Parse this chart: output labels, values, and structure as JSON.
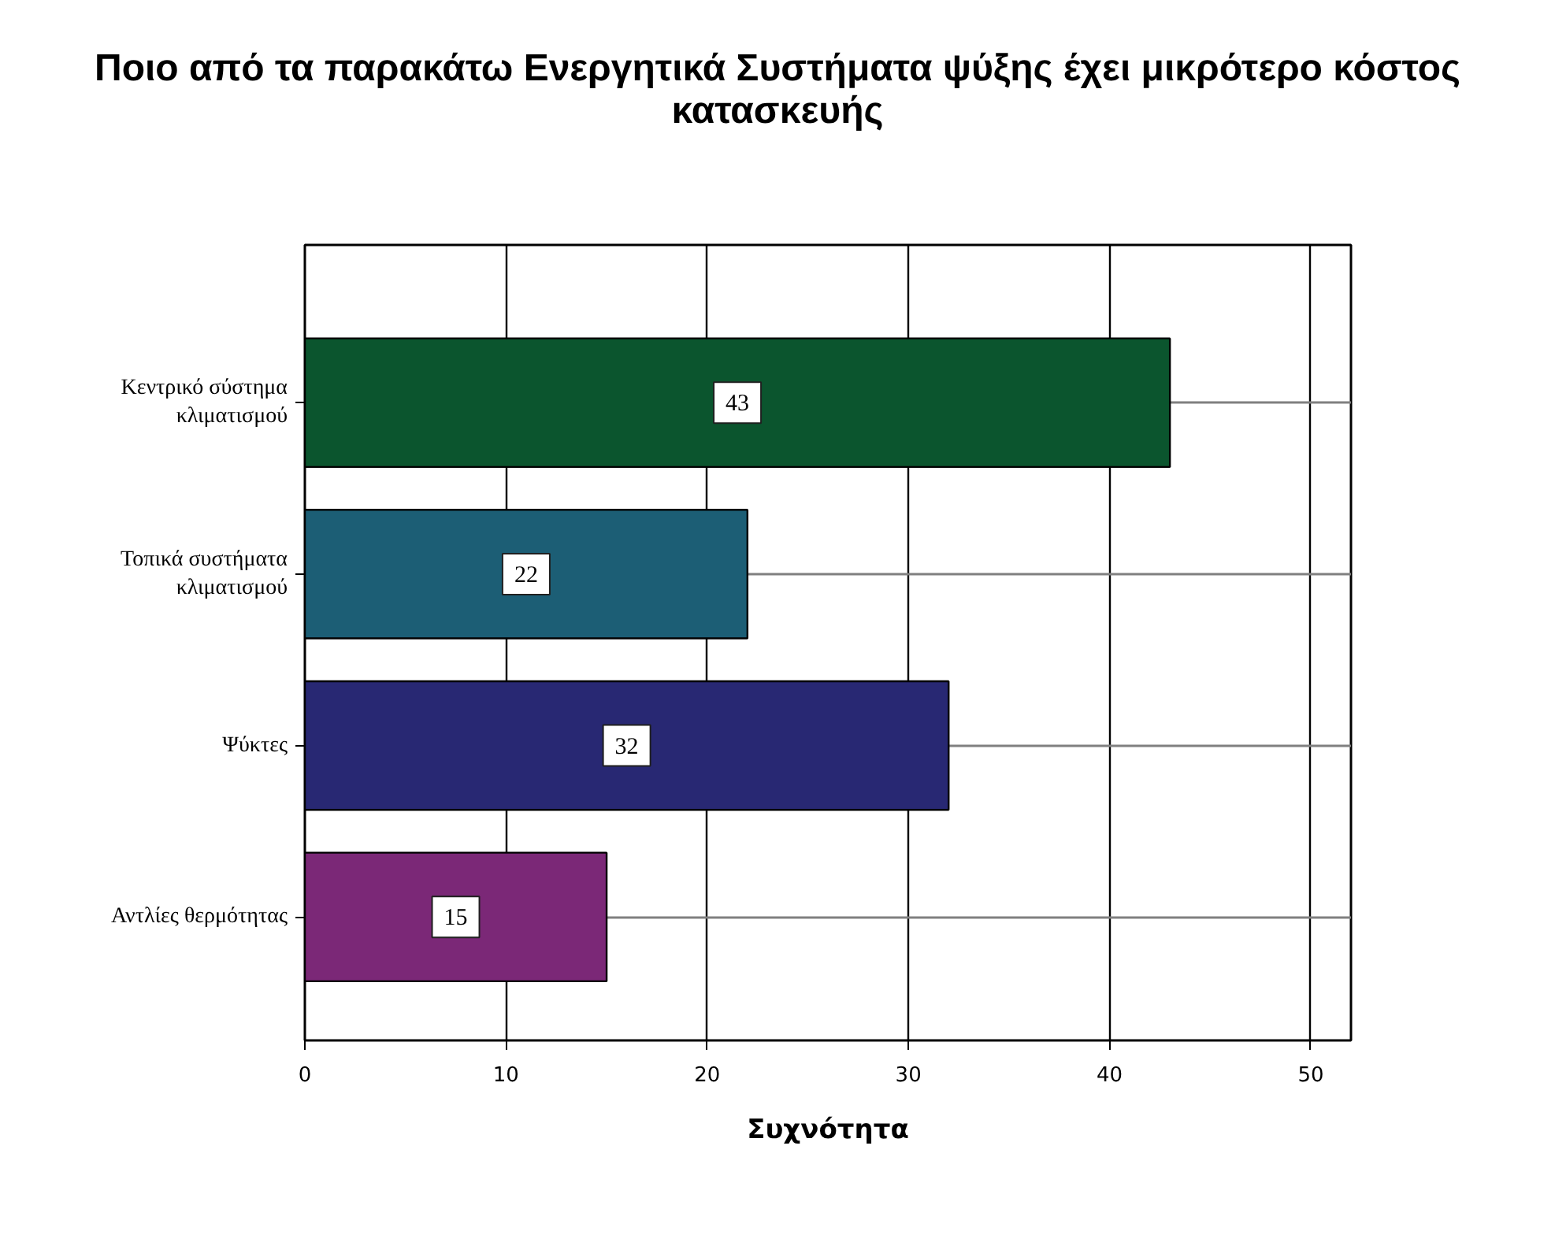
{
  "chart_data": {
    "type": "bar",
    "orientation": "horizontal",
    "title": "Ποιο από τα παρακάτω  Ενεργητικά Συστήματα ψύξης έχει μικρότερο κόστος κατασκευής",
    "xlabel": "Συχνότητα",
    "categories": [
      "Κεντρικό σύστημα κλιματισμού",
      "Τοπικά συστήματα κλιματισμού",
      "Ψύκτες",
      "Αντλίες θερμότητας"
    ],
    "values": [
      43,
      22,
      32,
      15
    ],
    "colors": [
      "#0b552e",
      "#1c5e75",
      "#282873",
      "#7b2877"
    ],
    "xlim": [
      0,
      52
    ],
    "xticks": [
      0,
      10,
      20,
      30,
      40,
      50
    ],
    "grid": true,
    "data_labels": true
  }
}
